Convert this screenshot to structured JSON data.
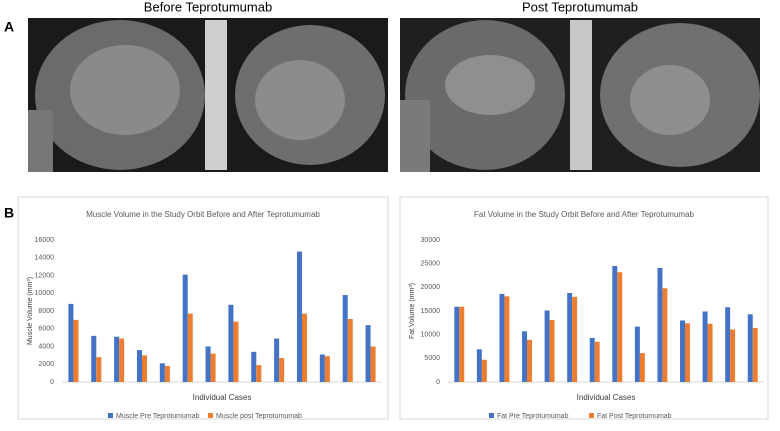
{
  "figure": {
    "panel_a_label": "A",
    "panel_b_label": "B",
    "image_titles": [
      "Before Teprotumumab",
      "Post Teprotumumab"
    ]
  },
  "chart_data": [
    {
      "type": "bar",
      "title": "Muscle Volume in the Study Orbit Before and After Teprotumumab",
      "x_label": "Individual Cases",
      "y_label": "Muscle Volume (mm³)",
      "categories": [
        null,
        null,
        null,
        null,
        null,
        null,
        null,
        null,
        null,
        null,
        null,
        null,
        null,
        null
      ],
      "series": [
        {
          "name": "Muscle Pre Teprotumumab",
          "color": "#4472c4",
          "values": [
            8800,
            5200,
            5100,
            3600,
            2100,
            12100,
            4000,
            8700,
            3400,
            4900,
            14700,
            3100,
            9800,
            6400
          ]
        },
        {
          "name": "Muscle post Teprotumumab",
          "color": "#ed7d31",
          "values": [
            7000,
            2800,
            4900,
            3000,
            1800,
            7700,
            3200,
            6800,
            1900,
            2700,
            7700,
            2900,
            7100,
            4000
          ]
        }
      ],
      "ylim": [
        0,
        16000
      ],
      "yticks": [
        0,
        2000,
        4000,
        6000,
        8000,
        10000,
        12000,
        14000,
        16000
      ],
      "grid": false,
      "legend": "bottom"
    },
    {
      "type": "bar",
      "title": "Fat Volume in the Study Orbit Before and After Teprotumumab",
      "x_label": "Individual Cases",
      "y_label": "Fat Volume (mm³)",
      "categories": [
        null,
        null,
        null,
        null,
        null,
        null,
        null,
        null,
        null,
        null,
        null,
        null,
        null,
        null
      ],
      "series": [
        {
          "name": "Fat Pre Teprotumumab",
          "color": "#4472c4",
          "values": [
            15900,
            6900,
            18600,
            10700,
            15100,
            18800,
            9300,
            24500,
            11700,
            24100,
            13000,
            14900,
            15800,
            14300
          ]
        },
        {
          "name": "Fat Post Teprotumumab",
          "color": "#ed7d31",
          "values": [
            15900,
            4700,
            18100,
            8900,
            13100,
            18000,
            8500,
            23200,
            6100,
            19800,
            12400,
            12300,
            11100,
            11400
          ]
        }
      ],
      "ylim": [
        0,
        30000
      ],
      "yticks": [
        0,
        5000,
        10000,
        15000,
        20000,
        25000,
        30000
      ],
      "grid": false,
      "legend": "bottom"
    }
  ]
}
